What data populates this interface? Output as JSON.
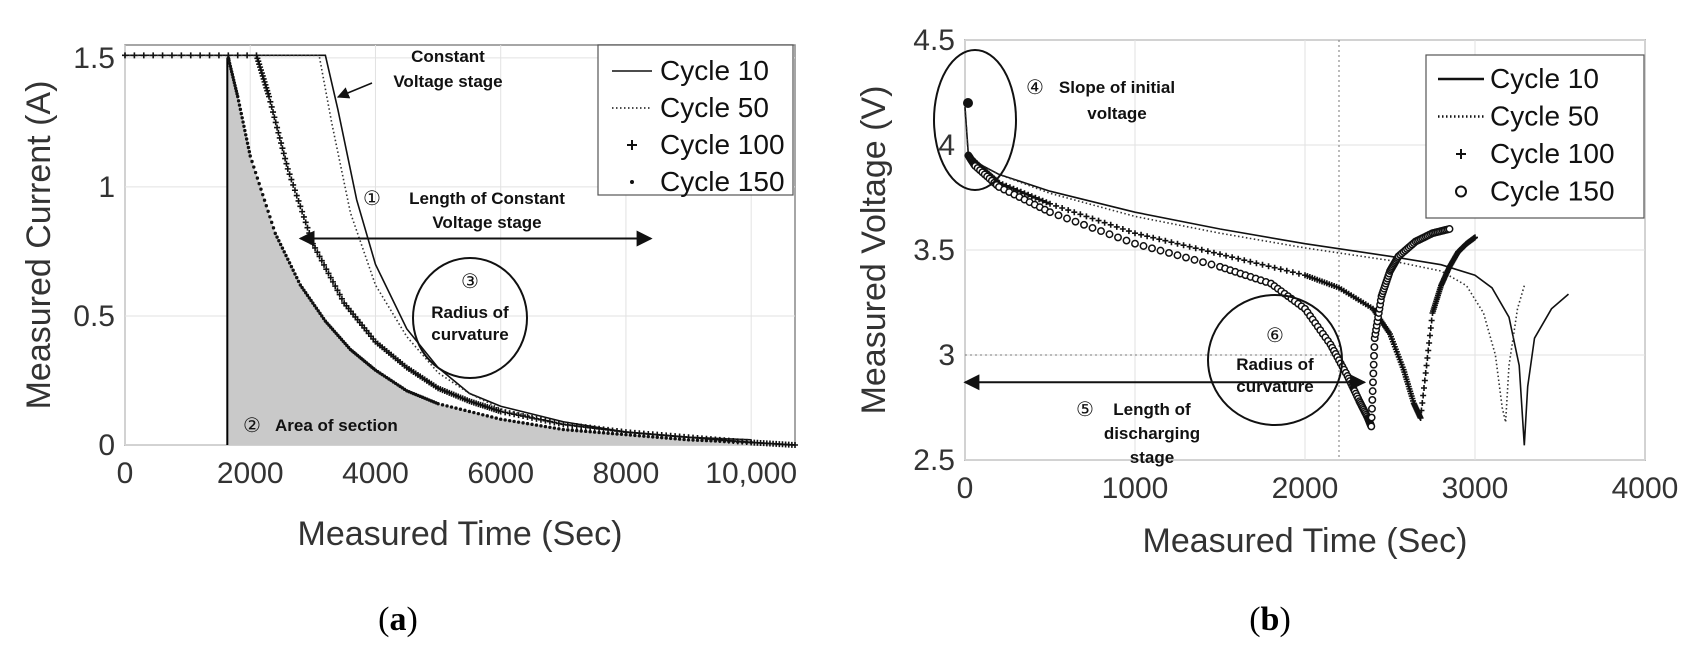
{
  "chart_data": [
    {
      "type": "line",
      "panel_label": "a",
      "xlabel": "Measured Time (Sec)",
      "ylabel": "Measured Current (A)",
      "xlim": [
        0,
        10700
      ],
      "ylim": [
        0,
        1.55
      ],
      "xticks": [
        0,
        2000,
        4000,
        6000,
        8000,
        10000
      ],
      "xtick_labels": [
        "0",
        "2000",
        "4000",
        "6000",
        "8000",
        "10,000"
      ],
      "yticks": [
        0,
        0.5,
        1,
        1.5
      ],
      "ytick_labels": [
        "0",
        "0.5",
        "1",
        "1.5"
      ],
      "legend": [
        "Cycle 10",
        "Cycle 50",
        "Cycle 100",
        "Cycle 150"
      ],
      "series": [
        {
          "name": "Cycle 10",
          "style": "solid",
          "x": [
            0,
            3200,
            3400,
            3700,
            4000,
            4500,
            5000,
            5500,
            6000,
            7000,
            8000,
            9000,
            10000
          ],
          "y": [
            1.51,
            1.51,
            1.3,
            0.95,
            0.7,
            0.45,
            0.3,
            0.2,
            0.15,
            0.09,
            0.05,
            0.03,
            0.02
          ]
        },
        {
          "name": "Cycle 50",
          "style": "dotted",
          "x": [
            0,
            3100,
            3300,
            3600,
            4000,
            4500,
            5000,
            5500,
            6000,
            7000,
            8000,
            9000,
            10000
          ],
          "y": [
            1.51,
            1.51,
            1.25,
            0.9,
            0.62,
            0.42,
            0.28,
            0.2,
            0.14,
            0.08,
            0.05,
            0.03,
            0.02
          ]
        },
        {
          "name": "Cycle 100",
          "style": "plus",
          "x": [
            0,
            2100,
            2300,
            2600,
            3000,
            3500,
            4000,
            4500,
            5000,
            5500,
            6000,
            7000,
            8000,
            9000,
            10000,
            10700
          ],
          "y": [
            1.51,
            1.51,
            1.35,
            1.07,
            0.78,
            0.55,
            0.4,
            0.3,
            0.22,
            0.17,
            0.13,
            0.08,
            0.05,
            0.03,
            0.01,
            0.0
          ]
        },
        {
          "name": "Cycle 150",
          "style": "dot",
          "x": [
            1650,
            1800,
            2000,
            2400,
            2800,
            3200,
            3600,
            4000,
            4500,
            5000,
            6000,
            7000,
            8000,
            9000,
            10000
          ],
          "y": [
            1.5,
            1.35,
            1.12,
            0.82,
            0.62,
            0.48,
            0.37,
            0.29,
            0.21,
            0.16,
            0.1,
            0.06,
            0.04,
            0.02,
            0.01
          ]
        }
      ],
      "vline_x": 1650,
      "shaded_area": "Area under Cycle 150 after 1650 s",
      "arrow_range_x": [
        2800,
        8400
      ],
      "arrow_y": 0.8,
      "annotations": [
        {
          "num": "①",
          "lines": [
            "Length of Constant",
            "Voltage stage"
          ],
          "x": 5800,
          "y": 0.93
        },
        {
          "num": "②",
          "lines": [
            "Area of section"
          ],
          "x": 3600,
          "y": 0.09
        },
        {
          "num": "③",
          "lines": [
            "Radius of",
            "curvature"
          ],
          "x": 5250,
          "y": 0.5
        },
        {
          "lines": [
            "Constant",
            "Voltage stage"
          ],
          "x": 4720,
          "y": 1.48
        }
      ]
    },
    {
      "type": "line",
      "panel_label": "b",
      "xlabel": "Measured Time (Sec)",
      "ylabel": "Measured Voltage (V)",
      "xlim": [
        0,
        4000
      ],
      "ylim": [
        2.5,
        4.5
      ],
      "xticks": [
        0,
        1000,
        2000,
        3000,
        4000
      ],
      "xtick_labels": [
        "0",
        "1000",
        "2000",
        "3000",
        "4000"
      ],
      "yticks": [
        2.5,
        3,
        3.5,
        4,
        4.5
      ],
      "ytick_labels": [
        "2.5",
        "3",
        "3.5",
        "4",
        "4.5"
      ],
      "legend": [
        "Cycle 10",
        "Cycle 50",
        "Cycle 100",
        "Cycle 150"
      ],
      "series": [
        {
          "name": "Cycle 10",
          "style": "solid",
          "x": [
            0,
            20,
            60,
            200,
            500,
            1000,
            1500,
            2000,
            2500,
            2800,
            3000,
            3100,
            3200,
            3260,
            3290,
            3310,
            3350,
            3450,
            3550
          ],
          "y": [
            4.18,
            3.95,
            3.92,
            3.86,
            3.78,
            3.68,
            3.6,
            3.53,
            3.47,
            3.43,
            3.38,
            3.32,
            3.18,
            2.95,
            2.57,
            2.85,
            3.08,
            3.22,
            3.29
          ]
        },
        {
          "name": "Cycle 50",
          "style": "dotted",
          "x": [
            0,
            20,
            60,
            200,
            500,
            1000,
            1500,
            2000,
            2500,
            2800,
            2950,
            3050,
            3120,
            3160,
            3180,
            3200,
            3250,
            3290
          ],
          "y": [
            4.18,
            3.95,
            3.92,
            3.86,
            3.77,
            3.66,
            3.58,
            3.51,
            3.45,
            3.4,
            3.33,
            3.2,
            3.0,
            2.75,
            2.68,
            2.95,
            3.22,
            3.33
          ]
        },
        {
          "name": "Cycle 100",
          "style": "plus",
          "x": [
            20,
            60,
            200,
            500,
            1000,
            1500,
            2000,
            2200,
            2400,
            2500,
            2580,
            2640,
            2680,
            2750,
            2800,
            2850,
            2900,
            2950,
            3000
          ],
          "y": [
            3.95,
            3.92,
            3.82,
            3.72,
            3.58,
            3.48,
            3.38,
            3.32,
            3.22,
            3.1,
            2.93,
            2.77,
            2.7,
            3.2,
            3.33,
            3.42,
            3.49,
            3.53,
            3.56
          ]
        },
        {
          "name": "Cycle 150",
          "style": "circle",
          "x": [
            20,
            60,
            200,
            500,
            1000,
            1500,
            1800,
            2000,
            2150,
            2250,
            2320,
            2370,
            2390,
            2410,
            2450,
            2500,
            2550,
            2650,
            2750,
            2850
          ],
          "y": [
            3.95,
            3.9,
            3.8,
            3.68,
            3.53,
            3.42,
            3.34,
            3.22,
            3.05,
            2.9,
            2.78,
            2.7,
            2.66,
            3.08,
            3.28,
            3.4,
            3.47,
            3.54,
            3.58,
            3.6
          ]
        }
      ],
      "vline_x": 2200,
      "hline_y": 3.0,
      "arrow_range_x": [
        0,
        2350
      ],
      "arrow_y": 2.87,
      "annotations": [
        {
          "num": "④",
          "lines": [
            "Slope of initial",
            "voltage"
          ],
          "x": 590,
          "y": 4.38
        },
        {
          "num": "⑤",
          "lines": [
            "Length of",
            "discharging",
            "stage"
          ],
          "x": 950,
          "y": 2.7
        },
        {
          "num": "⑥",
          "lines": [
            "Radius of",
            "curvature"
          ],
          "x": 1870,
          "y": 2.98
        }
      ]
    }
  ]
}
